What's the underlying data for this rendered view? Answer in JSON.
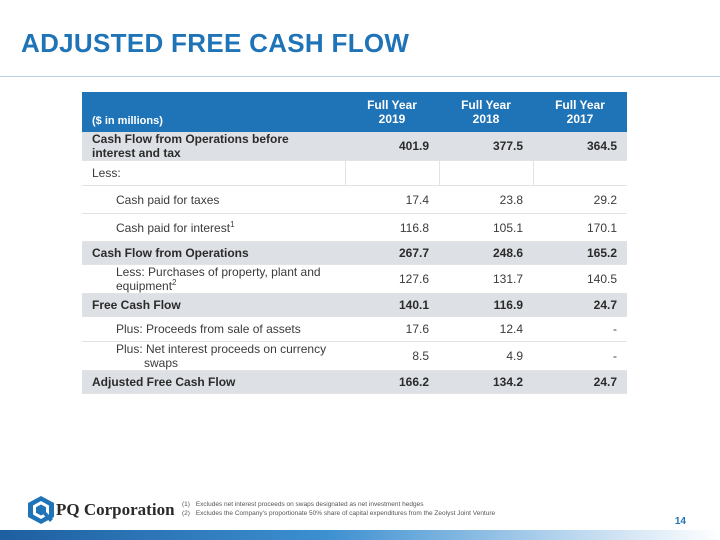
{
  "page": {
    "title": "ADJUSTED FREE CASH FLOW",
    "page_number": "14",
    "logo": {
      "name": "PQ Corporation"
    }
  },
  "table": {
    "units_label": "($ in millions)",
    "columns": [
      {
        "line1": "Full Year",
        "line2": "2019"
      },
      {
        "line1": "Full Year",
        "line2": "2018"
      },
      {
        "line1": "Full Year",
        "line2": "2017"
      }
    ],
    "rows": [
      {
        "label": "Cash Flow from Operations before interest and tax",
        "values": [
          "401.9",
          "377.5",
          "364.5"
        ]
      },
      {
        "label": "Less:",
        "values": [
          "",
          "",
          ""
        ]
      },
      {
        "label": "Cash paid for taxes",
        "values": [
          "17.4",
          "23.8",
          "29.2"
        ]
      },
      {
        "label": "Cash paid for interest",
        "sup": "1",
        "values": [
          "116.8",
          "105.1",
          "170.1"
        ]
      },
      {
        "label": "Cash Flow from Operations",
        "values": [
          "267.7",
          "248.6",
          "165.2"
        ]
      },
      {
        "label": "Less: Purchases of property, plant and equipment",
        "sup": "2",
        "values": [
          "127.6",
          "131.7",
          "140.5"
        ]
      },
      {
        "label": "Free Cash Flow",
        "values": [
          "140.1",
          "116.9",
          "24.7"
        ]
      },
      {
        "label": "Plus: Proceeds from sale of assets",
        "values": [
          "17.6",
          "12.4",
          "-"
        ]
      },
      {
        "label_line1": "Plus: Net interest proceeds on currency",
        "label_line2": "swaps",
        "values": [
          "8.5",
          "4.9",
          "-"
        ]
      },
      {
        "label": "Adjusted Free Cash Flow",
        "values": [
          "166.2",
          "134.2",
          "24.7"
        ]
      }
    ]
  },
  "footnotes": [
    {
      "num": "(1)",
      "text": "Excludes net interest proceeds on swaps designated as net investment hedges"
    },
    {
      "num": "(2)",
      "text": "Excludes the Company's proportionate 50% share of capital expenditures from the Zeolyst Joint Venture"
    }
  ],
  "colors": {
    "accent": "#1f73b7",
    "header_fill": "#1f73b7",
    "shaded_row": "#dde0e4"
  }
}
